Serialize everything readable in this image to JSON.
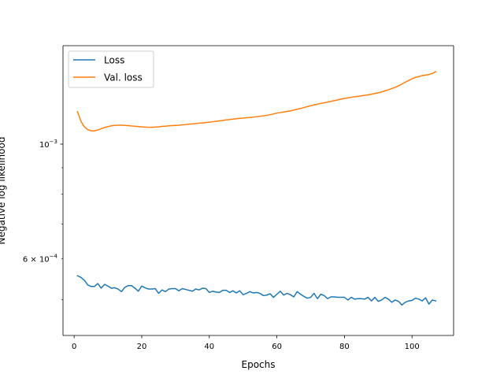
{
  "chart_data": {
    "type": "line",
    "title": "",
    "xlabel": "Epochs",
    "ylabel": "Negative log likelihood",
    "yscale": "log",
    "xlim": [
      -3.3,
      112.3
    ],
    "ylim": [
      0.000426,
      0.001551
    ],
    "xticks": [
      0,
      20,
      40,
      60,
      80,
      100
    ],
    "xtick_labels": [
      "0",
      "20",
      "40",
      "60",
      "80",
      "100"
    ],
    "yticks_major": [
      {
        "value": 0.001,
        "base": "10",
        "exp": "−3"
      }
    ],
    "yticks_minor": [
      {
        "value": 0.0006,
        "mantissa": "6 × 10",
        "exp": "−4"
      }
    ],
    "grid": false,
    "legend_position": "upper-left",
    "series": [
      {
        "name": "Loss",
        "color": "#1f77b4",
        "x": [
          1,
          2,
          3,
          4,
          5,
          6,
          7,
          8,
          9,
          10,
          11,
          12,
          13,
          14,
          15,
          16,
          17,
          18,
          19,
          20,
          21,
          22,
          23,
          24,
          25,
          26,
          27,
          28,
          29,
          30,
          31,
          32,
          33,
          34,
          35,
          36,
          37,
          38,
          39,
          40,
          41,
          42,
          43,
          44,
          45,
          46,
          47,
          48,
          49,
          50,
          51,
          52,
          53,
          54,
          55,
          56,
          57,
          58,
          59,
          60,
          61,
          62,
          63,
          64,
          65,
          66,
          67,
          68,
          69,
          70,
          71,
          72,
          73,
          74,
          75,
          76,
          77,
          78,
          79,
          80,
          81,
          82,
          83,
          84,
          85,
          86,
          87,
          88,
          89,
          90,
          91,
          92,
          93,
          94,
          95,
          96,
          97,
          98,
          99,
          100,
          101,
          102,
          103,
          104,
          105,
          106,
          107
        ],
        "values": [
          0.000556,
          0.000552,
          0.000545,
          0.000534,
          0.00053,
          0.00053,
          0.000537,
          0.000526,
          0.000535,
          0.000531,
          0.000526,
          0.000527,
          0.000524,
          0.000518,
          0.000528,
          0.000532,
          0.000532,
          0.000526,
          0.000519,
          0.000531,
          0.000527,
          0.000524,
          0.000524,
          0.000525,
          0.000514,
          0.000522,
          0.000518,
          0.000524,
          0.000525,
          0.000525,
          0.00052,
          0.000525,
          0.000523,
          0.000521,
          0.000519,
          0.000524,
          0.000522,
          0.000526,
          0.000525,
          0.000516,
          0.000519,
          0.000517,
          0.000516,
          0.000521,
          0.000521,
          0.000516,
          0.00052,
          0.000515,
          0.00052,
          0.000511,
          0.000514,
          0.000518,
          0.000515,
          0.000516,
          0.000514,
          0.000509,
          0.00051,
          0.000513,
          0.000505,
          0.000512,
          0.000519,
          0.00051,
          0.000514,
          0.000511,
          0.000506,
          0.000518,
          0.000512,
          0.000507,
          0.000503,
          0.000505,
          0.000514,
          0.000502,
          0.000512,
          0.000509,
          0.000502,
          0.000506,
          0.000506,
          0.000505,
          0.000505,
          0.000505,
          0.000499,
          0.000505,
          0.000501,
          0.000502,
          0.000502,
          0.000501,
          0.000505,
          0.000497,
          0.000505,
          0.000496,
          0.000499,
          0.000505,
          0.000501,
          0.000494,
          0.000499,
          0.000496,
          0.000488,
          0.000494,
          0.000497,
          0.000498,
          0.000503,
          0.000501,
          0.000497,
          0.000504,
          0.00049,
          0.000499,
          0.000497
        ]
      },
      {
        "name": "Val. loss",
        "color": "#ff7f0e",
        "x": [
          1,
          2,
          3,
          4,
          5,
          6,
          7,
          8,
          9,
          10,
          11,
          12,
          13,
          14,
          15,
          16,
          17,
          18,
          19,
          20,
          21,
          22,
          23,
          24,
          25,
          26,
          27,
          28,
          29,
          30,
          31,
          32,
          33,
          34,
          35,
          36,
          37,
          38,
          39,
          40,
          41,
          42,
          43,
          44,
          45,
          46,
          47,
          48,
          49,
          50,
          51,
          52,
          53,
          54,
          55,
          56,
          57,
          58,
          59,
          60,
          61,
          62,
          63,
          64,
          65,
          66,
          67,
          68,
          69,
          70,
          71,
          72,
          73,
          74,
          75,
          76,
          77,
          78,
          79,
          80,
          81,
          82,
          83,
          84,
          85,
          86,
          87,
          88,
          89,
          90,
          91,
          92,
          93,
          94,
          95,
          96,
          97,
          98,
          99,
          100,
          101,
          102,
          103,
          104,
          105,
          106,
          107
        ],
        "values": [
          0.001156,
          0.001107,
          0.001081,
          0.001067,
          0.001061,
          0.001061,
          0.001065,
          0.001071,
          0.001077,
          0.001081,
          0.001085,
          0.001087,
          0.001088,
          0.001088,
          0.001087,
          0.001086,
          0.001084,
          0.001083,
          0.001081,
          0.00108,
          0.001079,
          0.001078,
          0.001078,
          0.001079,
          0.00108,
          0.001082,
          0.001083,
          0.001085,
          0.001086,
          0.001087,
          0.001088,
          0.00109,
          0.001091,
          0.001093,
          0.001094,
          0.001096,
          0.001098,
          0.001099,
          0.001101,
          0.001103,
          0.001105,
          0.001107,
          0.001109,
          0.001111,
          0.001114,
          0.001116,
          0.001118,
          0.00112,
          0.001122,
          0.001123,
          0.001125,
          0.001126,
          0.001128,
          0.00113,
          0.001132,
          0.001134,
          0.001137,
          0.00114,
          0.001144,
          0.001148,
          0.001151,
          0.001154,
          0.001157,
          0.00116,
          0.001164,
          0.001168,
          0.001172,
          0.001177,
          0.001182,
          0.001187,
          0.001191,
          0.001195,
          0.001199,
          0.001202,
          0.001206,
          0.00121,
          0.001214,
          0.001218,
          0.001222,
          0.001226,
          0.001229,
          0.001232,
          0.001235,
          0.001237,
          0.00124,
          0.001243,
          0.001246,
          0.001249,
          0.001253,
          0.001257,
          0.001262,
          0.001268,
          0.001274,
          0.001281,
          0.001288,
          0.001297,
          0.001307,
          0.001318,
          0.001328,
          0.001338,
          0.001346,
          0.001352,
          0.001357,
          0.00136,
          0.001364,
          0.00137,
          0.001381
        ]
      }
    ]
  }
}
